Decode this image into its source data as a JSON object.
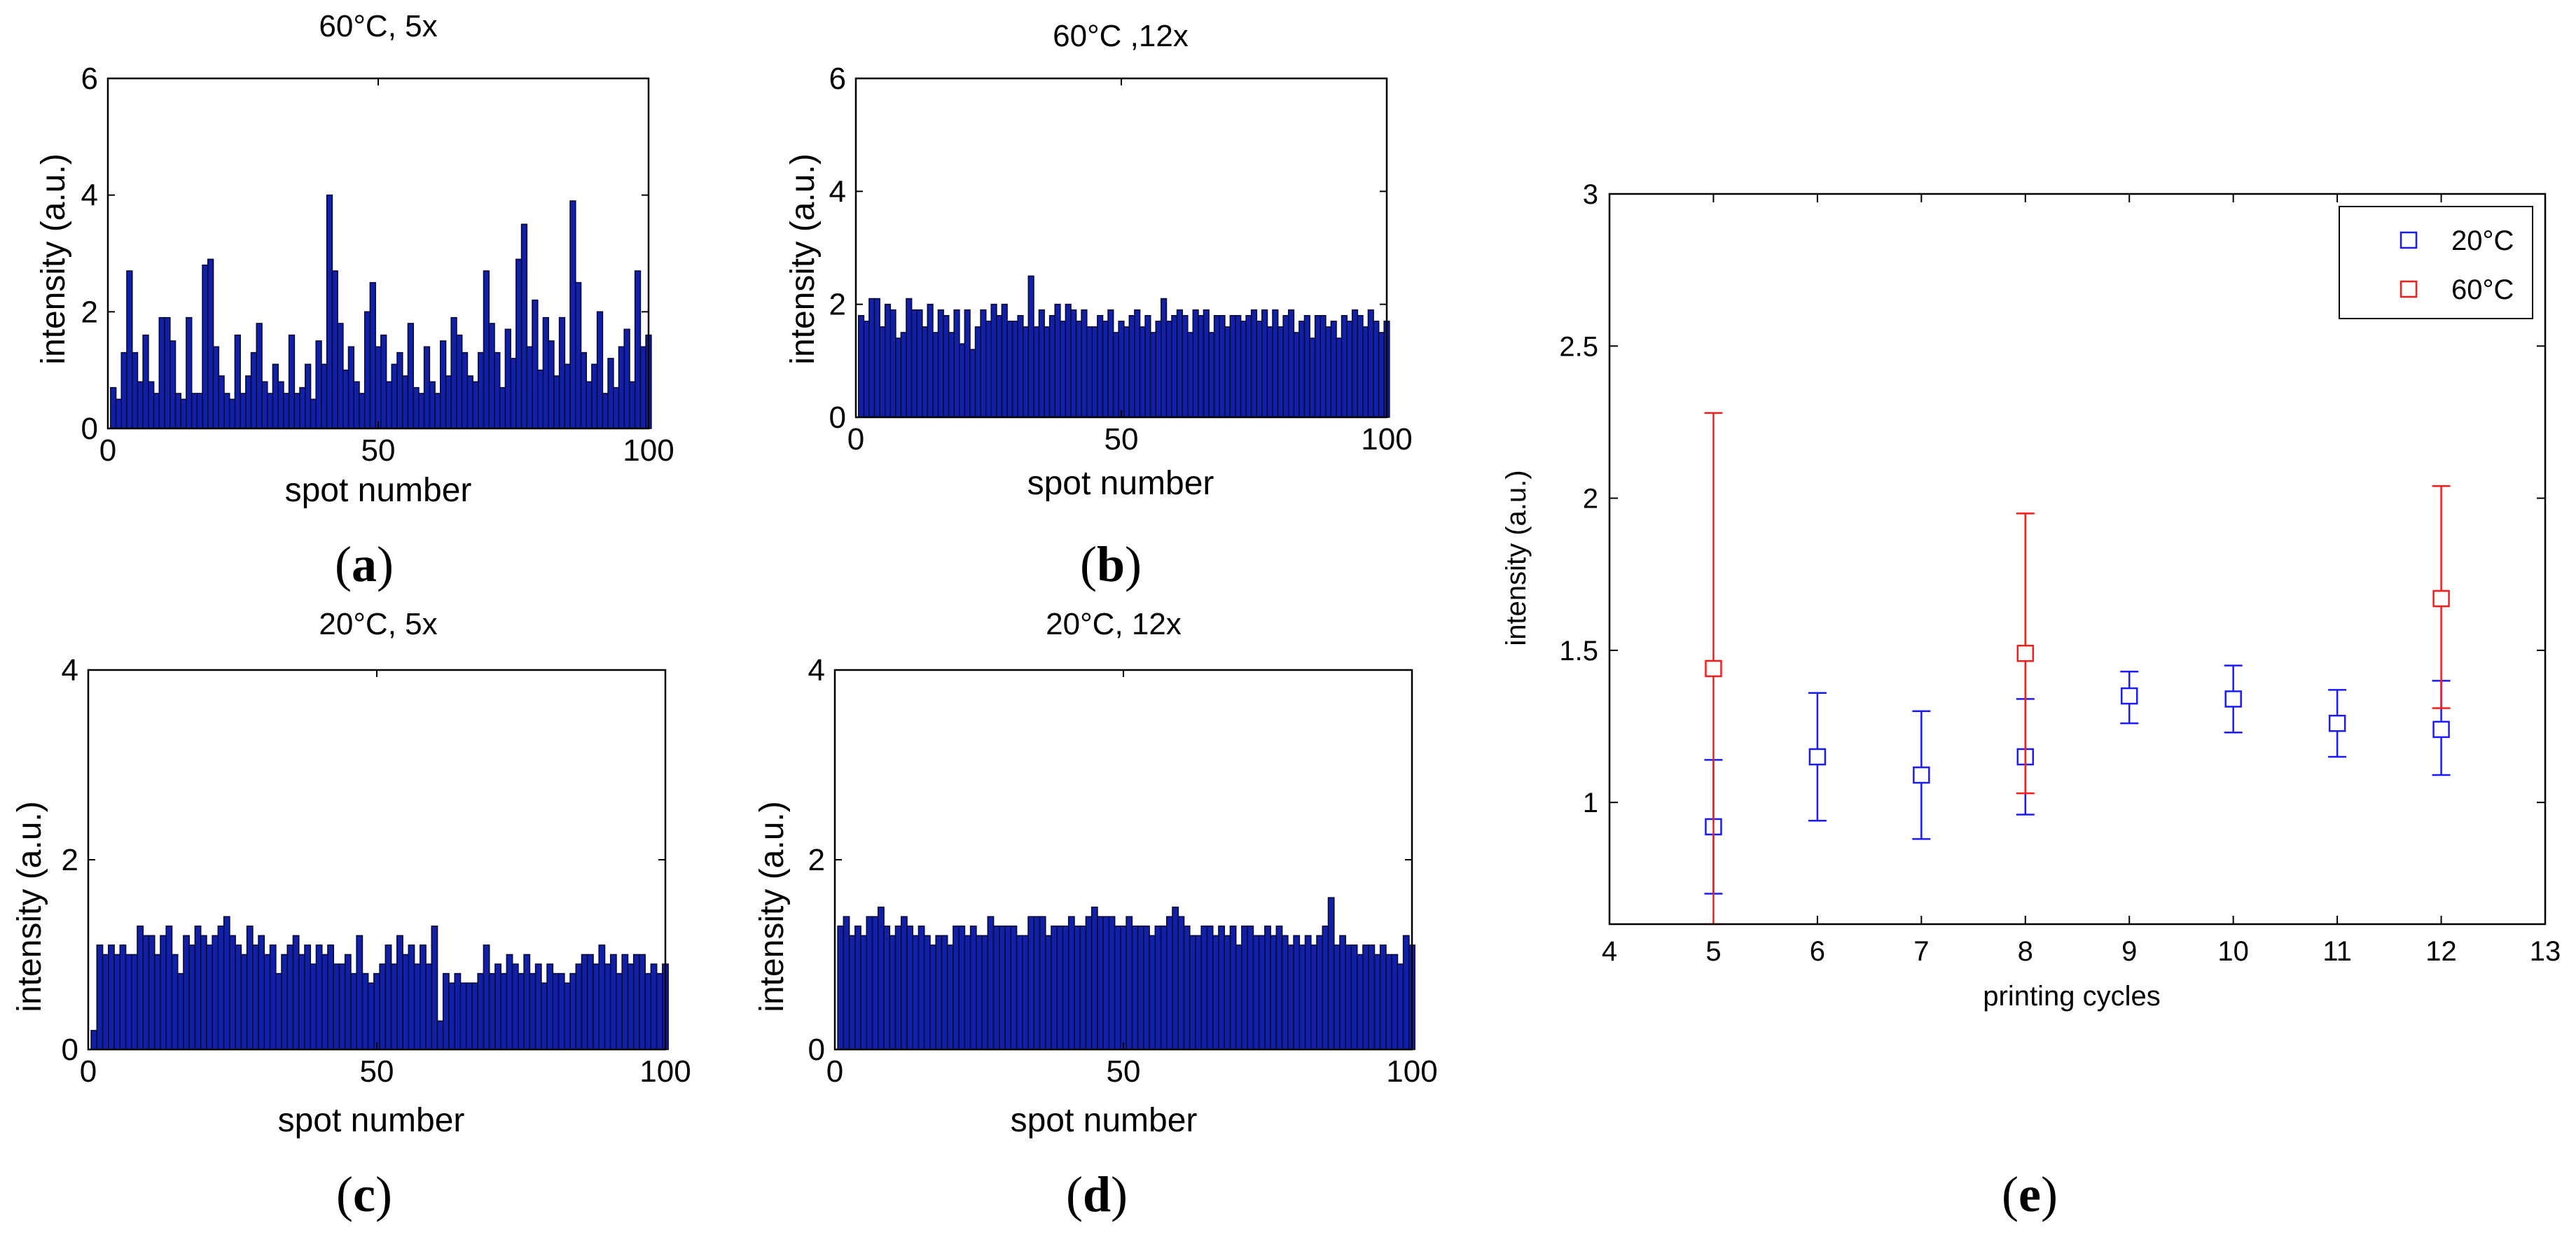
{
  "colors": {
    "bar_fill": "#1020a8",
    "bar_edge": "#0a0a38",
    "series_20": "#1a1aff",
    "series_60": "#ff1a1a",
    "axis": "#000000"
  },
  "panel_labels": [
    "a",
    "b",
    "c",
    "d",
    "e"
  ],
  "chart_data": [
    {
      "id": "a",
      "type": "bar",
      "title": "60°C, 5x",
      "xlabel": "spot number",
      "ylabel": "intensity (a.u.)",
      "xlim": [
        0,
        100
      ],
      "ylim": [
        0,
        6
      ],
      "xticks": [
        0,
        50,
        100
      ],
      "yticks": [
        0,
        2,
        4,
        6
      ],
      "values": [
        0.7,
        0.5,
        1.3,
        2.7,
        1.3,
        0.8,
        1.6,
        0.8,
        0.6,
        1.9,
        1.9,
        1.5,
        0.6,
        0.5,
        1.9,
        0.6,
        0.6,
        2.8,
        2.9,
        1.4,
        0.9,
        0.6,
        0.5,
        1.6,
        0.6,
        0.9,
        1.3,
        1.8,
        0.8,
        0.6,
        1.1,
        0.8,
        0.6,
        1.6,
        0.6,
        0.7,
        1.1,
        0.5,
        1.5,
        1.1,
        4.0,
        2.7,
        1.8,
        1.0,
        1.4,
        0.8,
        0.6,
        2.0,
        2.5,
        1.4,
        1.6,
        0.8,
        1.1,
        1.3,
        0.9,
        1.8,
        0.7,
        0.6,
        1.4,
        0.8,
        0.6,
        1.5,
        0.9,
        1.9,
        1.6,
        1.3,
        0.9,
        0.8,
        1.3,
        2.7,
        1.8,
        1.3,
        0.7,
        1.7,
        1.2,
        2.9,
        3.5,
        1.4,
        2.2,
        1.0,
        1.9,
        1.5,
        0.9,
        1.9,
        1.1,
        3.9,
        2.5,
        1.3,
        0.8,
        1.1,
        2.0,
        0.6,
        1.2,
        0.7,
        1.4,
        1.7,
        0.8,
        2.7,
        1.4,
        1.6
      ]
    },
    {
      "id": "b",
      "type": "bar",
      "title": "60°C ,12x",
      "xlabel": "spot number",
      "ylabel": "intensity (a.u.)",
      "xlim": [
        0,
        100
      ],
      "ylim": [
        0,
        6
      ],
      "xticks": [
        0,
        50,
        100
      ],
      "yticks": [
        0,
        2,
        4,
        6
      ],
      "values": [
        1.8,
        1.7,
        2.1,
        2.1,
        1.6,
        2.0,
        1.9,
        1.4,
        1.5,
        2.1,
        1.9,
        1.9,
        1.6,
        2.0,
        1.5,
        1.9,
        1.8,
        1.5,
        1.9,
        1.3,
        1.9,
        1.2,
        1.6,
        1.9,
        1.7,
        2.0,
        1.8,
        2.0,
        1.7,
        1.7,
        1.8,
        1.6,
        2.5,
        1.6,
        1.9,
        1.6,
        1.8,
        2.0,
        1.7,
        2.0,
        1.9,
        1.7,
        1.9,
        1.6,
        1.6,
        1.8,
        1.7,
        1.9,
        1.5,
        1.7,
        1.6,
        1.8,
        1.9,
        1.6,
        1.8,
        1.5,
        1.7,
        2.1,
        1.7,
        1.8,
        1.9,
        1.8,
        1.5,
        1.9,
        1.8,
        1.9,
        1.5,
        1.8,
        1.8,
        1.6,
        1.8,
        1.8,
        1.7,
        1.8,
        1.9,
        1.7,
        1.9,
        1.6,
        1.9,
        1.6,
        1.8,
        1.9,
        1.5,
        1.7,
        1.8,
        1.4,
        1.8,
        1.8,
        1.6,
        1.7,
        1.4,
        1.8,
        1.7,
        1.9,
        1.8,
        1.6,
        1.9,
        1.7,
        1.5,
        1.7
      ]
    },
    {
      "id": "c",
      "type": "bar",
      "title": "20°C, 5x",
      "xlabel": "spot number",
      "ylabel": "intensity (a.u.)",
      "xlim": [
        0,
        100
      ],
      "ylim": [
        0,
        4
      ],
      "xticks": [
        0,
        50,
        100
      ],
      "yticks": [
        0,
        2,
        4
      ],
      "values": [
        0.2,
        1.1,
        1.0,
        1.1,
        1.0,
        1.1,
        1.0,
        1.0,
        1.3,
        1.2,
        1.2,
        1.0,
        1.2,
        1.3,
        1.0,
        0.8,
        1.2,
        1.1,
        1.3,
        1.2,
        1.1,
        1.2,
        1.3,
        1.4,
        1.2,
        1.1,
        1.0,
        1.3,
        1.1,
        1.2,
        1.0,
        1.1,
        0.8,
        1.0,
        1.1,
        1.2,
        1.0,
        1.1,
        0.9,
        1.1,
        1.0,
        1.1,
        0.9,
        0.9,
        1.0,
        0.8,
        1.2,
        0.8,
        0.7,
        0.8,
        0.9,
        1.1,
        0.9,
        1.2,
        1.0,
        1.1,
        0.9,
        1.1,
        0.9,
        1.3,
        0.3,
        0.8,
        0.7,
        0.8,
        0.7,
        0.7,
        0.7,
        0.8,
        1.1,
        0.8,
        0.9,
        0.8,
        1.0,
        0.9,
        0.8,
        1.0,
        0.8,
        0.9,
        0.7,
        0.9,
        0.8,
        0.8,
        0.7,
        0.8,
        0.9,
        1.0,
        1.0,
        0.9,
        1.1,
        0.9,
        1.0,
        0.8,
        1.0,
        0.9,
        1.0,
        1.0,
        0.8,
        0.9,
        0.8,
        0.9
      ]
    },
    {
      "id": "d",
      "type": "bar",
      "title": "20°C, 12x",
      "xlabel": "spot number",
      "ylabel": "intensity (a.u.)",
      "xlim": [
        0,
        100
      ],
      "ylim": [
        0,
        4
      ],
      "xticks": [
        0,
        50,
        100
      ],
      "yticks": [
        0,
        2,
        4
      ],
      "values": [
        1.3,
        1.4,
        1.2,
        1.3,
        1.2,
        1.4,
        1.4,
        1.5,
        1.3,
        1.2,
        1.3,
        1.4,
        1.3,
        1.2,
        1.3,
        1.2,
        1.1,
        1.2,
        1.2,
        1.1,
        1.3,
        1.3,
        1.2,
        1.3,
        1.2,
        1.2,
        1.4,
        1.3,
        1.3,
        1.3,
        1.3,
        1.2,
        1.2,
        1.4,
        1.4,
        1.4,
        1.2,
        1.3,
        1.3,
        1.3,
        1.4,
        1.3,
        1.3,
        1.4,
        1.5,
        1.4,
        1.4,
        1.4,
        1.3,
        1.3,
        1.4,
        1.3,
        1.3,
        1.3,
        1.2,
        1.3,
        1.3,
        1.4,
        1.5,
        1.4,
        1.3,
        1.2,
        1.2,
        1.3,
        1.3,
        1.2,
        1.3,
        1.2,
        1.3,
        1.1,
        1.3,
        1.3,
        1.2,
        1.2,
        1.3,
        1.2,
        1.3,
        1.2,
        1.1,
        1.2,
        1.1,
        1.2,
        1.1,
        1.2,
        1.3,
        1.6,
        1.1,
        1.2,
        1.1,
        1.1,
        1.0,
        1.1,
        1.1,
        1.0,
        1.1,
        1.0,
        1.0,
        0.9,
        1.2,
        1.1
      ]
    },
    {
      "id": "e",
      "type": "scatter",
      "xlabel": "printing cycles",
      "ylabel": "intensity (a.u.)",
      "xlim": [
        4,
        13
      ],
      "ylim": [
        0.6,
        3
      ],
      "xticks": [
        4,
        5,
        6,
        7,
        8,
        9,
        10,
        11,
        12,
        13
      ],
      "yticks": [
        1,
        1.5,
        2,
        2.5,
        3
      ],
      "ytick_labels": [
        "1",
        "1.5",
        "2",
        "2.5",
        "3"
      ],
      "legend_position": "top-right",
      "series": [
        {
          "name": "20°C",
          "x": [
            5,
            6,
            7,
            8,
            9,
            10,
            11,
            12
          ],
          "y": [
            0.92,
            1.15,
            1.09,
            1.15,
            1.35,
            1.34,
            1.26,
            1.24
          ],
          "err_low": [
            0.7,
            0.94,
            0.88,
            0.96,
            1.26,
            1.23,
            1.15,
            1.09
          ],
          "err_high": [
            1.14,
            1.36,
            1.3,
            1.34,
            1.43,
            1.45,
            1.37,
            1.4
          ]
        },
        {
          "name": "60°C",
          "x": [
            5,
            8,
            12
          ],
          "y": [
            1.44,
            1.49,
            1.67
          ],
          "err_low": [
            0.6,
            1.03,
            1.31
          ],
          "err_high": [
            2.28,
            1.95,
            2.04
          ]
        }
      ]
    }
  ]
}
